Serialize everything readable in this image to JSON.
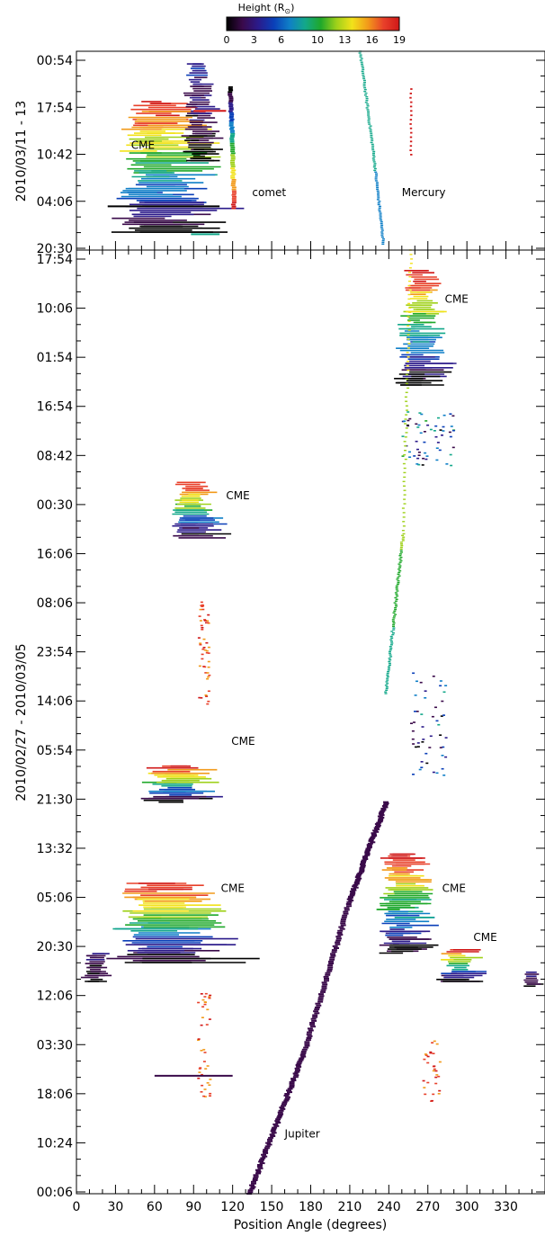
{
  "chart_data": [
    {
      "type": "heatmap",
      "panel": "top",
      "ylabel": "2010/03/11 - 13",
      "y_tick_labels": [
        "00:54",
        "17:54",
        "10:42",
        "04:06",
        "20:30"
      ],
      "x_range": [
        0,
        360
      ],
      "annotations": [
        {
          "text": "CME",
          "x": 42,
          "y_time": "10:42"
        },
        {
          "text": "comet",
          "x": 135,
          "y_time": "04:06"
        },
        {
          "text": "Mercury",
          "x": 250,
          "y_time": "04:06"
        }
      ],
      "features": [
        {
          "name": "CME",
          "pa_range": [
            20,
            110
          ],
          "time_range": [
            "20:30",
            "00:54"
          ],
          "max_height": 19
        },
        {
          "name": "comet",
          "pa": 120,
          "time_range": [
            "04:06",
            "17:54"
          ]
        },
        {
          "name": "Mercury",
          "pa_range": [
            218,
            237
          ],
          "time_range": [
            "20:30",
            "00:54"
          ]
        },
        {
          "name": "streak",
          "pa": 257,
          "time_range": [
            "10:42",
            "17:54"
          ]
        }
      ]
    },
    {
      "type": "heatmap",
      "panel": "bottom",
      "ylabel": "2010/02/27 - 2010/03/05",
      "xlabel": "Position Angle (degrees)",
      "x_ticks": [
        0,
        30,
        60,
        90,
        120,
        150,
        180,
        210,
        240,
        270,
        300,
        330
      ],
      "x_range": [
        0,
        360
      ],
      "y_tick_labels": [
        "17:54",
        "10:06",
        "01:54",
        "16:54",
        "08:42",
        "00:30",
        "16:06",
        "08:06",
        "23:54",
        "14:06",
        "05:54",
        "21:30",
        "13:32",
        "05:06",
        "20:30",
        "12:06",
        "03:30",
        "18:06",
        "10:24",
        "00:06"
      ],
      "annotations": [
        {
          "text": "CME",
          "x": 283,
          "y_time": "10:06"
        },
        {
          "text": "CME",
          "x": 115,
          "y_time": "00:30"
        },
        {
          "text": "CME",
          "x": 119,
          "y_time": "05:54"
        },
        {
          "text": "CME",
          "x": 281,
          "y_time": "05:06"
        },
        {
          "text": "CME",
          "x": 111,
          "y_time": "05:06"
        },
        {
          "text": "CME",
          "x": 305,
          "y_time": "20:30"
        },
        {
          "text": "Jupiter",
          "x": 160,
          "y_time": "10:24"
        }
      ],
      "features": [
        {
          "name": "CME",
          "pa_range": [
            240,
            300
          ],
          "time_range": [
            "01:54",
            "17:54"
          ]
        },
        {
          "name": "CME",
          "pa_range": [
            60,
            110
          ],
          "time_range": [
            "16:06",
            "08:42"
          ]
        },
        {
          "name": "CME",
          "pa_range": [
            40,
            115
          ],
          "time_range": [
            "21:30",
            "05:54"
          ]
        },
        {
          "name": "CME",
          "pa_range": [
            225,
            275
          ],
          "time_range": [
            "05:06",
            "21:30"
          ]
        },
        {
          "name": "CME",
          "pa_range": [
            0,
            110
          ],
          "time_range": [
            "12:06",
            "05:06"
          ]
        },
        {
          "name": "CME",
          "pa_range": [
            270,
            360
          ],
          "time_range": [
            "12:06",
            "20:30"
          ]
        },
        {
          "name": "Mercury",
          "pa_range": [
            233,
            257
          ],
          "time_range": [
            "23:54",
            "17:54"
          ]
        },
        {
          "name": "Jupiter",
          "pa_range": [
            130,
            237
          ],
          "time_range": [
            "00:06",
            "21:30"
          ]
        }
      ]
    }
  ],
  "colorbar": {
    "title": "Height (R⊙)",
    "title_main": "Height (R",
    "title_sub": "⊙",
    "title_end": ")",
    "ticks": [
      0,
      3,
      6,
      10,
      13,
      16,
      19
    ],
    "colors": [
      "#000000",
      "#3a0a4a",
      "#2b1a8a",
      "#0a3fb8",
      "#0f7fc7",
      "#13a88a",
      "#1fa82a",
      "#9fd11a",
      "#f2e21a",
      "#f29a1a",
      "#e8402a",
      "#d01818"
    ]
  }
}
